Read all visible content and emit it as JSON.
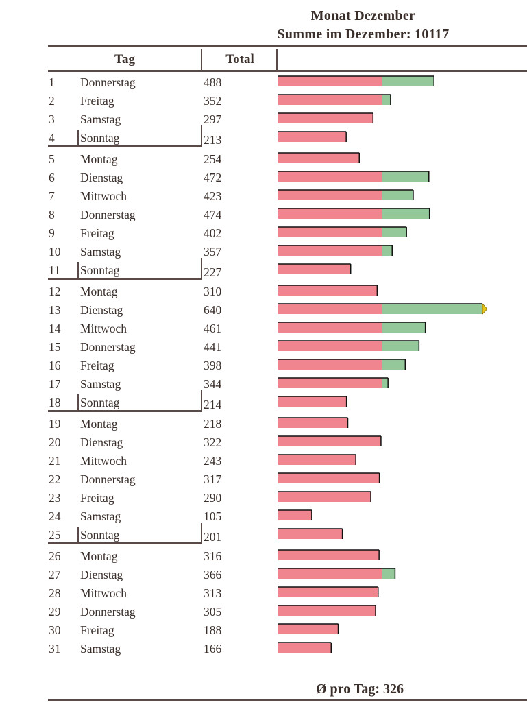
{
  "title": "Monat Dezember",
  "subtitle": "Summe im Dezember: 10117",
  "columns": {
    "tag": "Tag",
    "total": "Total"
  },
  "footer": "Ø pro Tag: 326",
  "colors": {
    "base": "#f08590",
    "excess": "#94c79a",
    "overflow_marker": "#e8c31a",
    "rule": "#5a4a47"
  },
  "chart_data": {
    "type": "bar",
    "orientation": "horizontal",
    "threshold": 326,
    "xlim": [
      0,
      640
    ],
    "categories": [
      "1",
      "2",
      "3",
      "4",
      "5",
      "6",
      "7",
      "8",
      "9",
      "10",
      "11",
      "12",
      "13",
      "14",
      "15",
      "16",
      "17",
      "18",
      "19",
      "20",
      "21",
      "22",
      "23",
      "24",
      "25",
      "26",
      "27",
      "28",
      "29",
      "30",
      "31"
    ],
    "days": [
      "Donnerstag",
      "Freitag",
      "Samstag",
      "Sonntag",
      "Montag",
      "Dienstag",
      "Mittwoch",
      "Donnerstag",
      "Freitag",
      "Samstag",
      "Sonntag",
      "Montag",
      "Dienstag",
      "Mittwoch",
      "Donnerstag",
      "Freitag",
      "Samstag",
      "Sonntag",
      "Montag",
      "Dienstag",
      "Mittwoch",
      "Donnerstag",
      "Freitag",
      "Samstag",
      "Sonntag",
      "Montag",
      "Dienstag",
      "Mittwoch",
      "Donnerstag",
      "Freitag",
      "Samstag"
    ],
    "values": [
      488,
      352,
      297,
      213,
      254,
      472,
      423,
      474,
      402,
      357,
      227,
      310,
      640,
      461,
      441,
      398,
      344,
      214,
      218,
      322,
      243,
      317,
      290,
      105,
      201,
      316,
      366,
      313,
      305,
      188,
      166
    ]
  }
}
